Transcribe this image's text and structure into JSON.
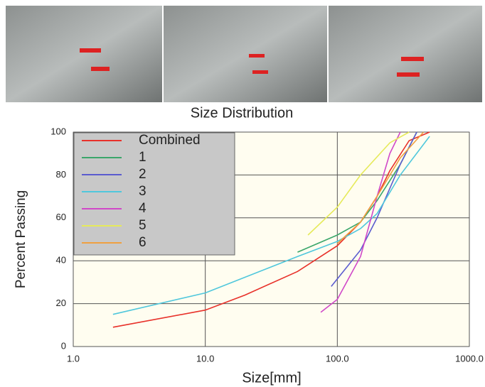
{
  "chart_data": {
    "type": "line",
    "title": "Size Distribution",
    "x_label": "Size[mm]",
    "y_label": "Percent Passing",
    "xlog": true,
    "grid": true,
    "legend": "top-left",
    "xlim": [
      1,
      1000
    ],
    "ylim": [
      0,
      100
    ],
    "xticks": [
      {
        "value": 1,
        "label": "1.0"
      },
      {
        "value": 10,
        "label": "10.0"
      },
      {
        "value": 100,
        "label": "100.0"
      },
      {
        "value": 1000,
        "label": "1000.0"
      }
    ],
    "yticks": [
      0,
      20,
      40,
      60,
      80,
      100
    ],
    "series": [
      {
        "name": "Combined",
        "color": "#e8312a",
        "x": [
          2,
          10,
          20,
          50,
          100,
          150,
          200,
          250,
          350,
          500
        ],
        "values": [
          9,
          17,
          24,
          35,
          47,
          58,
          70,
          82,
          96,
          100
        ]
      },
      {
        "name": "1",
        "color": "#3aa66a",
        "x": [
          50,
          100,
          150,
          200,
          300,
          400
        ],
        "values": [
          44,
          52,
          58,
          68,
          85,
          100
        ]
      },
      {
        "name": "2",
        "color": "#5b5ccf",
        "x": [
          90,
          150,
          200,
          300,
          400
        ],
        "values": [
          28,
          45,
          60,
          85,
          100
        ]
      },
      {
        "name": "3",
        "color": "#4fc7dc",
        "x": [
          2,
          10,
          50,
          100,
          150,
          200,
          300,
          500
        ],
        "values": [
          15,
          25,
          42,
          49,
          55,
          62,
          80,
          98
        ]
      },
      {
        "name": "4",
        "color": "#d048c8",
        "x": [
          75,
          100,
          150,
          200,
          250,
          300
        ],
        "values": [
          16,
          22,
          42,
          70,
          90,
          100
        ]
      },
      {
        "name": "5",
        "color": "#e6ea5a",
        "x": [
          60,
          100,
          150,
          250,
          350
        ],
        "values": [
          52,
          65,
          80,
          95,
          100
        ]
      },
      {
        "name": "6",
        "color": "#f0a040",
        "x": [
          100,
          150,
          200,
          300,
          450
        ],
        "values": [
          48,
          58,
          70,
          88,
          100
        ]
      }
    ]
  }
}
